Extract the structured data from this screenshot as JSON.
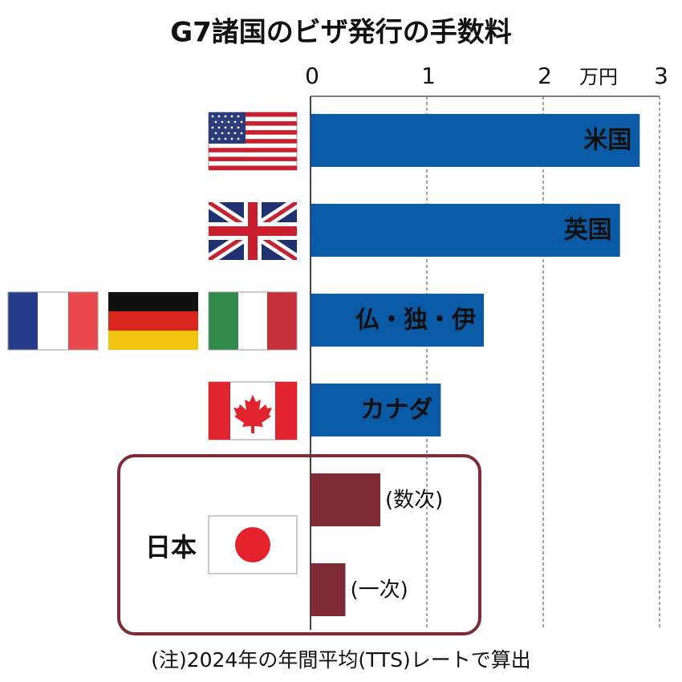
{
  "chart_data": {
    "type": "bar",
    "orientation": "horizontal",
    "title": "G7諸国のビザ発行の手数料",
    "unit": "万円",
    "categories": [
      "米国",
      "英国",
      "仏・独・伊",
      "カナダ",
      "(数次)",
      "(一次)"
    ],
    "values": [
      2.83,
      2.66,
      1.49,
      1.12,
      0.6,
      0.3
    ],
    "colors": [
      "#0b5aa6",
      "#0b5aa6",
      "#0b5aa6",
      "#0b5aa6",
      "#7f2b36",
      "#7f2b36"
    ],
    "group_label": "日本",
    "xlim": [
      0,
      3
    ],
    "xticks": [
      0,
      1,
      2,
      3
    ],
    "grid": true,
    "note": "(注)2024年の年間平均(TTS)レートで算出"
  }
}
